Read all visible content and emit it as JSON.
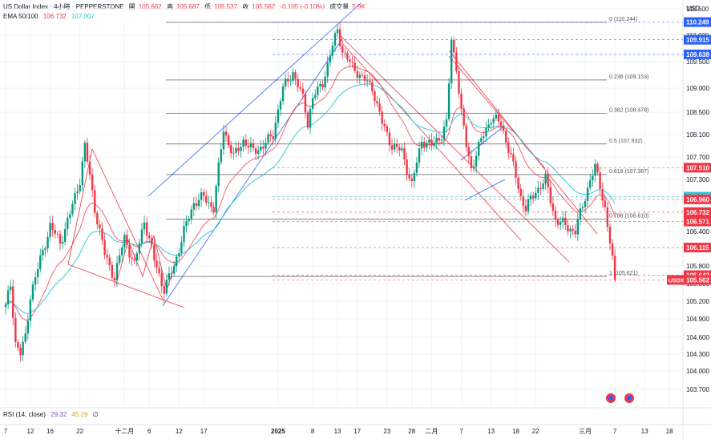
{
  "header": {
    "symbol": "US Dollar Index · 4小時 · PEPPERSTONE",
    "open_label": "開",
    "open": "105.662",
    "high_label": "高",
    "high": "105.687",
    "low_label": "低",
    "low": "105.537",
    "close_label": "收",
    "close": "105.562",
    "change": "-0.105 (-0.10%)",
    "volume_label": "成交量",
    "volume": "2.9K",
    "ema_label": "EMA 50/100",
    "ema50": "106.732",
    "ema100": "107.007",
    "currency": "USD"
  },
  "rsi": {
    "label": "RSI (14, close)",
    "value": "29.32",
    "ma": "45.19",
    "extra": "∅"
  },
  "colors": {
    "up": "#089981",
    "down": "#f23645",
    "ema50": "#f23645",
    "ema100": "#26c6da",
    "channel_up": "#2962ff",
    "fib": "#131722",
    "grid": "#f0f3fa"
  },
  "chart_data": {
    "type": "line",
    "title": "US Dollar Index · 4小時 · PEPPERSTONE",
    "xlabel": "",
    "ylabel": "",
    "ylim": [
      103.7,
      110.7
    ],
    "y_ticks": [
      103.7,
      104.0,
      104.3,
      104.6,
      104.9,
      105.2,
      105.5,
      105.8,
      106.1,
      106.4,
      106.7,
      107.0,
      107.3,
      107.7,
      108.1,
      108.5,
      109.0,
      109.5,
      110.0,
      110.5
    ],
    "y_tick_labels": [
      "103.700",
      "104.000",
      "104.300",
      "104.600",
      "104.900",
      "105.200",
      "105.500",
      "105.800",
      "106.100",
      "106.400",
      "106.700",
      "107.000",
      "107.300",
      "107.700",
      "108.100",
      "108.500",
      "109.000",
      "109.500",
      "110.000",
      "110.500"
    ],
    "x_ticks": [
      {
        "label": "7",
        "d": 0
      },
      {
        "label": "12",
        "d": 5
      },
      {
        "label": "16",
        "d": 9
      },
      {
        "label": "22",
        "d": 15
      },
      {
        "label": "十二月",
        "d": 24
      },
      {
        "label": "6",
        "d": 29
      },
      {
        "label": "12",
        "d": 35
      },
      {
        "label": "17",
        "d": 40
      },
      {
        "label": "2025",
        "d": 55
      },
      {
        "label": "8",
        "d": 62
      },
      {
        "label": "13",
        "d": 67
      },
      {
        "label": "17",
        "d": 71
      },
      {
        "label": "23",
        "d": 77
      },
      {
        "label": "28",
        "d": 82
      },
      {
        "label": "二月",
        "d": 86
      },
      {
        "label": "7",
        "d": 92
      },
      {
        "label": "13",
        "d": 98
      },
      {
        "label": "18",
        "d": 103
      },
      {
        "label": "22",
        "d": 107
      },
      {
        "label": "三月",
        "d": 117
      },
      {
        "label": "7",
        "d": 123
      },
      {
        "label": "13",
        "d": 129
      },
      {
        "label": "18",
        "d": 134
      }
    ],
    "series": [
      {
        "name": "US Dollar Index",
        "key_points": [
          [
            0,
            105.1
          ],
          [
            1,
            105.5
          ],
          [
            2,
            104.5
          ],
          [
            3,
            104.3
          ],
          [
            4,
            104.6
          ],
          [
            5,
            105.3
          ],
          [
            7,
            105.9
          ],
          [
            9,
            106.5
          ],
          [
            11,
            106.2
          ],
          [
            13,
            106.7
          ],
          [
            15,
            107.3
          ],
          [
            16,
            107.9
          ],
          [
            18,
            106.8
          ],
          [
            20,
            106.0
          ],
          [
            22,
            105.6
          ],
          [
            24,
            106.3
          ],
          [
            26,
            105.8
          ],
          [
            28,
            106.6
          ],
          [
            30,
            105.9
          ],
          [
            32,
            105.4
          ],
          [
            34,
            105.8
          ],
          [
            36,
            106.4
          ],
          [
            38,
            106.9
          ],
          [
            40,
            107.0
          ],
          [
            42,
            106.8
          ],
          [
            44,
            108.2
          ],
          [
            46,
            107.7
          ],
          [
            48,
            108.0
          ],
          [
            50,
            107.8
          ],
          [
            52,
            107.9
          ],
          [
            54,
            108.1
          ],
          [
            56,
            109.0
          ],
          [
            58,
            109.3
          ],
          [
            60,
            108.8
          ],
          [
            61,
            108.3
          ],
          [
            62,
            108.8
          ],
          [
            64,
            109.1
          ],
          [
            66,
            109.8
          ],
          [
            67,
            110.1
          ],
          [
            68,
            109.7
          ],
          [
            70,
            109.4
          ],
          [
            72,
            109.2
          ],
          [
            74,
            109.0
          ],
          [
            76,
            108.3
          ],
          [
            78,
            107.9
          ],
          [
            80,
            107.8
          ],
          [
            82,
            107.2
          ],
          [
            84,
            108.0
          ],
          [
            86,
            107.9
          ],
          [
            88,
            108.1
          ],
          [
            89,
            108.3
          ],
          [
            90,
            109.9
          ],
          [
            91,
            109.4
          ],
          [
            92,
            108.5
          ],
          [
            93,
            107.9
          ],
          [
            94,
            107.5
          ],
          [
            96,
            108.0
          ],
          [
            98,
            108.4
          ],
          [
            100,
            108.3
          ],
          [
            102,
            107.7
          ],
          [
            104,
            107.0
          ],
          [
            105,
            106.8
          ],
          [
            107,
            107.1
          ],
          [
            109,
            107.3
          ],
          [
            111,
            106.6
          ],
          [
            113,
            106.5
          ],
          [
            115,
            106.4
          ],
          [
            116,
            106.7
          ],
          [
            118,
            107.3
          ],
          [
            119,
            107.5
          ],
          [
            120,
            107.2
          ],
          [
            121,
            106.8
          ],
          [
            122,
            106.2
          ],
          [
            123,
            105.56
          ]
        ]
      },
      {
        "name": "EMA 50",
        "value_last": 106.732
      },
      {
        "name": "EMA 100",
        "value_last": 107.007
      }
    ],
    "fib_levels": [
      {
        "label": "0 (110.244)",
        "value": 110.244
      },
      {
        "label": "0.236 (109.153)",
        "value": 109.153
      },
      {
        "label": "0.382 (108.478)",
        "value": 108.478
      },
      {
        "label": "0.5 (107.932)",
        "value": 107.932
      },
      {
        "label": "0.618 (107.387)",
        "value": 107.387
      },
      {
        "label": "0.786 (106.610)",
        "value": 106.61
      },
      {
        "label": "1 (105.621)",
        "value": 105.621
      }
    ],
    "price_tags": [
      {
        "label": "110.249",
        "value": 110.249,
        "color": "#2962ff"
      },
      {
        "label": "109.915",
        "value": 109.915,
        "color": "#2962ff"
      },
      {
        "label": "109.638",
        "value": 109.638,
        "color": "#2962ff"
      },
      {
        "label": "107.510",
        "value": 107.51,
        "color": "#f23645"
      },
      {
        "label": "107.007",
        "value": 107.007,
        "color": "#26c6da"
      },
      {
        "label": "106.960",
        "value": 106.96,
        "color": "#f23645"
      },
      {
        "label": "106.732",
        "value": 106.732,
        "color": "#f23645"
      },
      {
        "label": "106.571",
        "value": 106.571,
        "color": "#f23645"
      },
      {
        "label": "106.115",
        "value": 106.115,
        "color": "#f23645"
      },
      {
        "label": "105.643",
        "value": 105.643,
        "color": "#f23645"
      },
      {
        "label": "105.562",
        "value": 105.562,
        "color": "#f23645"
      }
    ],
    "symbol_tag": "USDX",
    "legend": "top-left",
    "grid": true
  }
}
